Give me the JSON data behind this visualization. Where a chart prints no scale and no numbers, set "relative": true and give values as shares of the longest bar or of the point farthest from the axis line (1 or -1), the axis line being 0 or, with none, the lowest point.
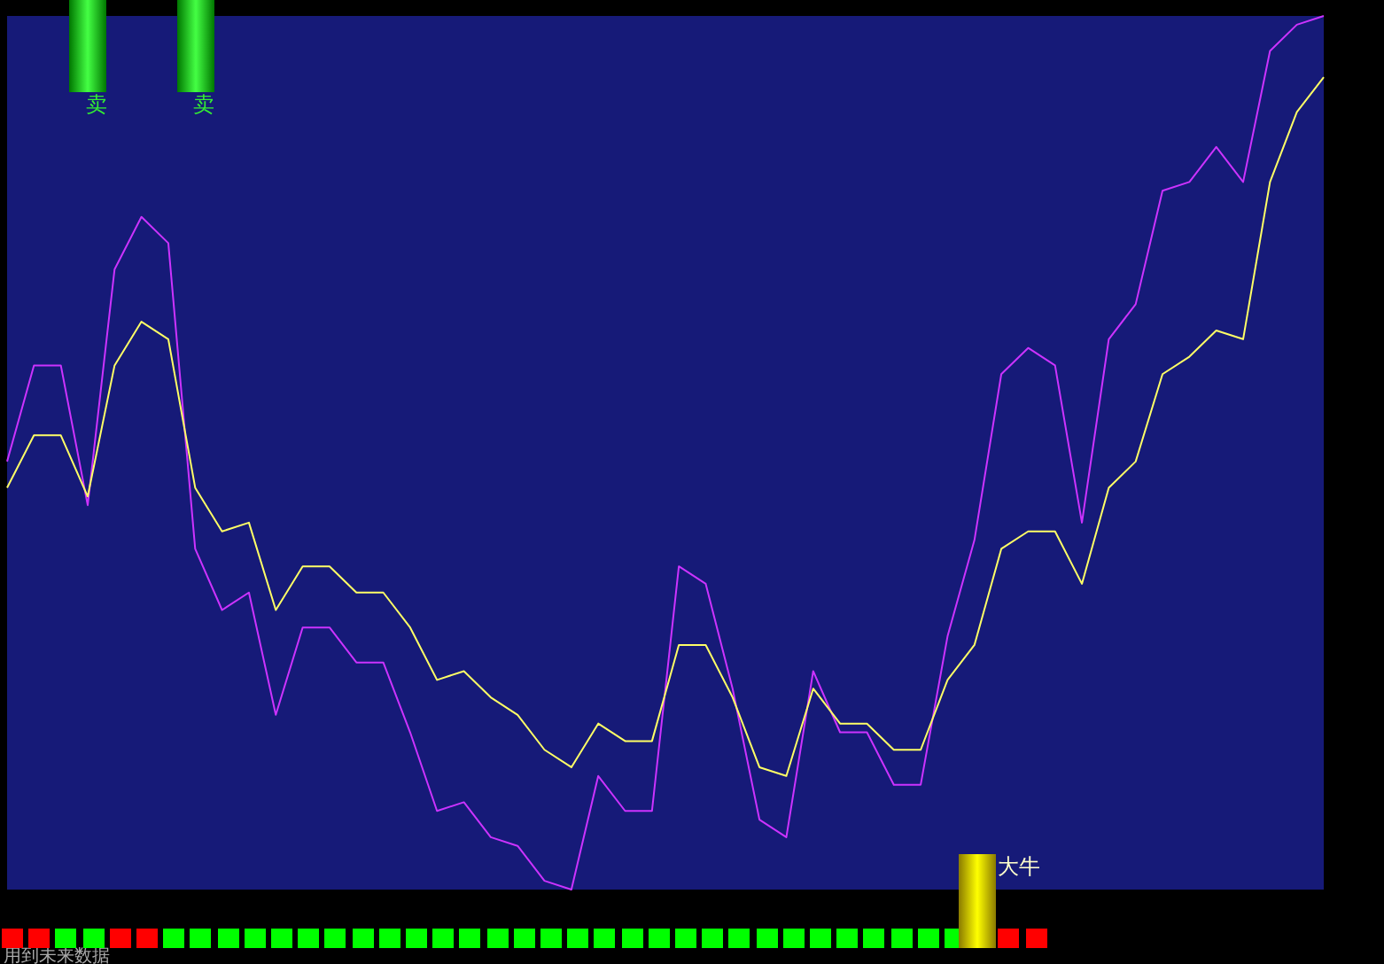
{
  "chart_data": {
    "type": "line",
    "relative": true,
    "grid": false,
    "marker": "none",
    "line_style": "solid",
    "categories": [
      null,
      null,
      null,
      null,
      null,
      null,
      null,
      null,
      null,
      null,
      null,
      null,
      null,
      null,
      null,
      null,
      null,
      null,
      null,
      null,
      null,
      null,
      null,
      null,
      null,
      null,
      null,
      null,
      null,
      null,
      null,
      null,
      null,
      null,
      null,
      null,
      null,
      null,
      null,
      null,
      null,
      null,
      null,
      null,
      null,
      null,
      null,
      null,
      null,
      null
    ],
    "series": [
      {
        "color": "#cc33ff",
        "values": [
          0.49,
          0.6,
          0.6,
          0.44,
          0.71,
          0.77,
          0.74,
          0.39,
          0.32,
          0.34,
          0.2,
          0.3,
          0.3,
          0.26,
          0.26,
          0.18,
          0.09,
          0.1,
          0.06,
          0.05,
          0.01,
          0,
          0.13,
          0.09,
          0.09,
          0.37,
          0.35,
          0.23,
          0.08,
          0.06,
          0.25,
          0.18,
          0.18,
          0.12,
          0.12,
          0.29,
          0.4,
          0.59,
          0.62,
          0.6,
          0.42,
          0.63,
          0.67,
          0.8,
          0.81,
          0.85,
          0.81,
          0.96,
          0.99,
          1
        ]
      },
      {
        "color": "#ffff66",
        "values": [
          0.46,
          0.52,
          0.52,
          0.45,
          0.6,
          0.65,
          0.63,
          0.46,
          0.41,
          0.42,
          0.32,
          0.37,
          0.37,
          0.34,
          0.34,
          0.3,
          0.24,
          0.25,
          0.22,
          0.2,
          0.16,
          0.14,
          0.19,
          0.17,
          0.17,
          0.28,
          0.28,
          0.22,
          0.14,
          0.13,
          0.23,
          0.19,
          0.19,
          0.16,
          0.16,
          0.24,
          0.28,
          0.39,
          0.41,
          0.41,
          0.35,
          0.46,
          0.49,
          0.59,
          0.61,
          0.64,
          0.63,
          0.81,
          0.89,
          0.93
        ]
      }
    ],
    "annotations": [
      "卖",
      "卖",
      "大牛",
      "用到未来数据"
    ]
  }
}
